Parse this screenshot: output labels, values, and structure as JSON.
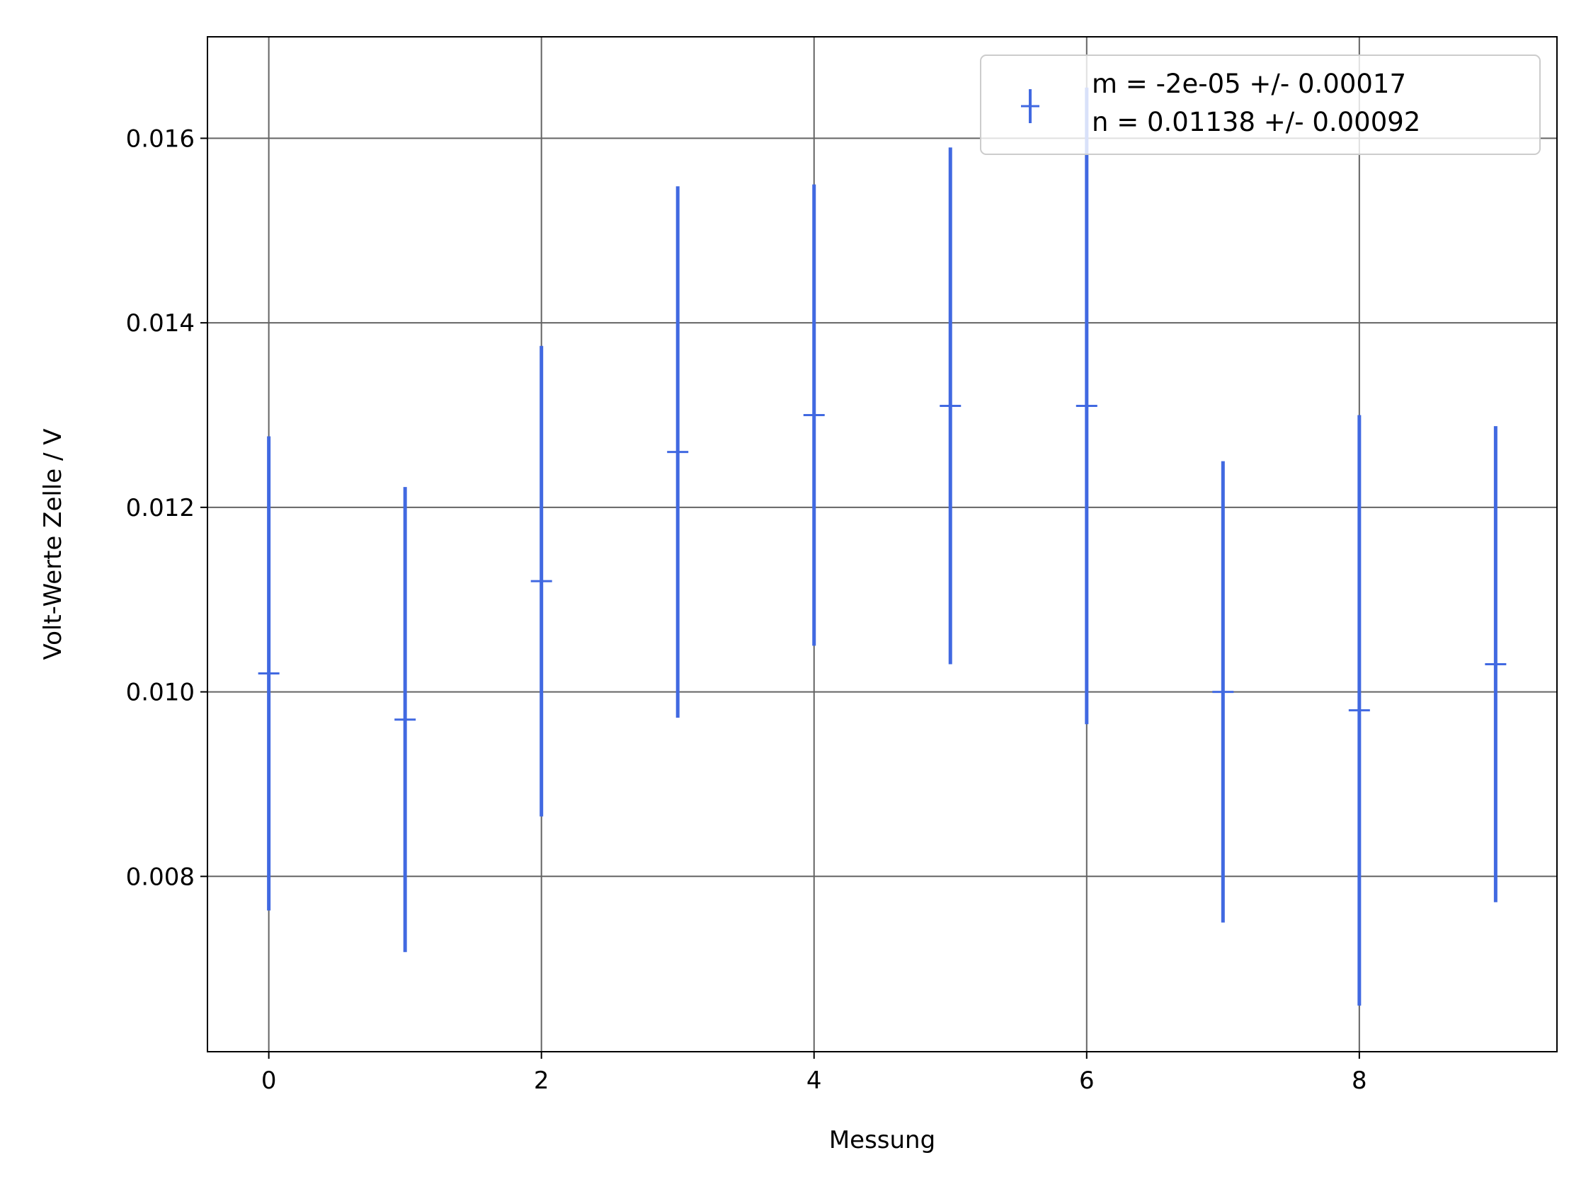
{
  "chart_data": {
    "type": "scatter",
    "title": "",
    "xlabel": "Messung",
    "ylabel": "Volt-Werte Zelle / V",
    "xlim": [
      -0.45,
      9.45
    ],
    "ylim": [
      0.0061,
      0.0171
    ],
    "xticks": [
      0,
      2,
      4,
      6,
      8
    ],
    "yticks": [
      0.008,
      0.01,
      0.012,
      0.014,
      0.016
    ],
    "xtick_labels": [
      "0",
      "2",
      "4",
      "6",
      "8"
    ],
    "ytick_labels": [
      "0.008",
      "0.010",
      "0.012",
      "0.014",
      "0.016"
    ],
    "grid": true,
    "legend_position": "top-right",
    "series_color": "#4169e1",
    "grid_color": "#646464",
    "series": [
      {
        "marker": "+",
        "x": [
          0,
          1,
          2,
          3,
          4,
          5,
          6,
          7,
          8,
          9
        ],
        "y": [
          0.0102,
          0.0097,
          0.0112,
          0.0126,
          0.013,
          0.0131,
          0.0131,
          0.01,
          0.0098,
          0.0103
        ],
        "yerr": [
          0.00257,
          0.00252,
          0.00255,
          0.00288,
          0.0025,
          0.0028,
          0.00345,
          0.0025,
          0.0032,
          0.00258
        ]
      }
    ],
    "legend": {
      "lines": [
        "m = -2e-05 +/- 0.00017",
        "n = 0.01138 +/- 0.00092"
      ]
    }
  }
}
